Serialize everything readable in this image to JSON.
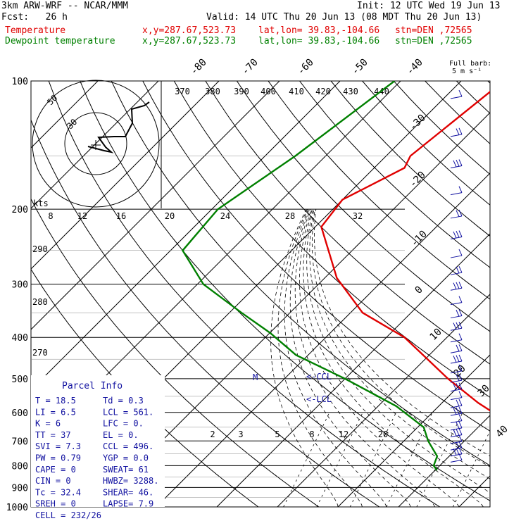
{
  "header": {
    "model": "3km ARW-WRF -- NCAR/MMM",
    "init": "Init: 12 UTC Wed 19 Jun 13",
    "fcst": "Fcst:   26 h",
    "valid": "Valid: 14 UTC Thu 20 Jun 13 (08 MDT Thu 20 Jun 13)",
    "temp_label": "Temperature",
    "dew_label": "Dewpoint temperature",
    "xy": "x,y=287.67,523.73",
    "latlon": "lat,lon= 39.83,-104.66",
    "stn": "stn=DEN ,72565"
  },
  "colors": {
    "temperature": "#e00000",
    "dewpoint": "#008000",
    "barbs": "#1010a0",
    "parcel_text": "#1010a0",
    "grid": "#000000"
  },
  "chart_data": {
    "type": "line",
    "pressure_levels": [
      "100",
      "200",
      "300",
      "400",
      "500",
      "600",
      "700",
      "800",
      "900",
      "1000"
    ],
    "isotherm_labels": [
      "-80",
      "-70",
      "-60",
      "-50",
      "-40",
      "-30",
      "-20",
      "-10",
      "0",
      "10",
      "20",
      "30",
      "40"
    ],
    "theta_labels": [
      "370",
      "380",
      "390",
      "400",
      "410",
      "420",
      "430",
      "440"
    ],
    "side_theta_labels": [
      "290",
      "280",
      "270"
    ],
    "mixing_ratio_labels": [
      "2",
      "3",
      "5",
      "8",
      "12",
      "20"
    ],
    "wind_scale_labels": [
      "8",
      "12",
      "16",
      "20",
      "24",
      "28",
      "32"
    ],
    "hodograph": {
      "unit": "kts",
      "ring_labels": [
        "50",
        "30"
      ]
    },
    "barb_legend": {
      "line1": "Full barb:",
      "line2": "5 m s⁻¹"
    },
    "level_markers": {
      "m": "M",
      "ccl": "<-CCL",
      "lcl": "<-LCL"
    },
    "series": [
      {
        "name": "Temperature",
        "points": [
          [
            100,
            -53
          ],
          [
            150,
            -56
          ],
          [
            160,
            -55
          ],
          [
            190,
            -60
          ],
          [
            220,
            -59
          ],
          [
            290,
            -48
          ],
          [
            350,
            -38
          ],
          [
            400,
            -27
          ],
          [
            500,
            -13
          ],
          [
            570,
            -4
          ],
          [
            640,
            5
          ],
          [
            700,
            10
          ],
          [
            760,
            15
          ],
          [
            785,
            17
          ],
          [
            800,
            17
          ],
          [
            812,
            16.5
          ],
          [
            820,
            16.7
          ]
        ]
      },
      {
        "name": "Dewpoint temperature",
        "points": [
          [
            100,
            -71
          ],
          [
            150,
            -75
          ],
          [
            200,
            -79
          ],
          [
            250,
            -78
          ],
          [
            300,
            -69
          ],
          [
            350,
            -58
          ],
          [
            390,
            -50
          ],
          [
            440,
            -42
          ],
          [
            500,
            -30
          ],
          [
            580,
            -17
          ],
          [
            650,
            -9
          ],
          [
            700,
            -6
          ],
          [
            760,
            -2
          ],
          [
            800,
            -1
          ],
          [
            820,
            0.3
          ]
        ]
      }
    ]
  },
  "parcel": {
    "title": "Parcel Info",
    "rows": [
      [
        "T    =    18.5",
        "Td  =   0.3"
      ],
      [
        "LI   =     6.5",
        "LCL =  561."
      ],
      [
        "K    =       6",
        "LFC =    0."
      ],
      [
        "TT   =      37",
        "EL  =    0."
      ],
      [
        "SVI  =     7.3",
        "CCL =  496."
      ],
      [
        "PW   =    0.79",
        "YGP =   0.0"
      ],
      [
        "CAPE =       0",
        "SWEAT=   61"
      ],
      [
        "CIN  =       0",
        "HWBZ= 3288."
      ],
      [
        "Tc   =    32.4",
        "SHEAR=  46."
      ],
      [
        "SREH =       0",
        "LAPSE=  7.9"
      ],
      [
        "CELL =  232/26",
        ""
      ]
    ]
  }
}
